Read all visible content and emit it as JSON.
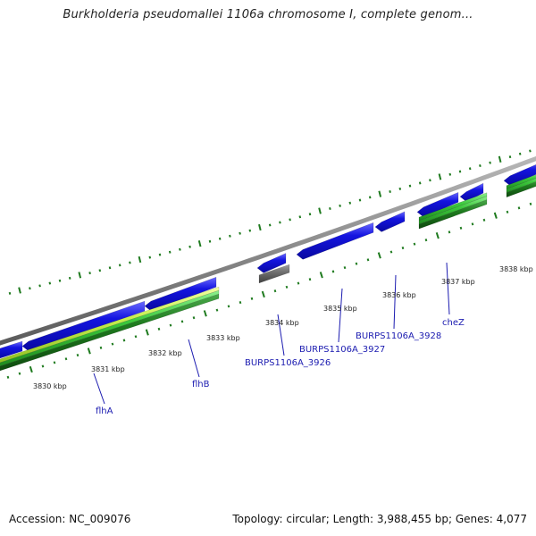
{
  "title": "Burkholderia pseudomallei 1106a chromosome I, complete genom...",
  "footer": {
    "accession": "Accession: NC_009076",
    "topology": "Topology: circular; Length: 3,988,455 bp; Genes: 4,077"
  },
  "colors": {
    "backbone": "#8a8a8a",
    "cds_blue": "#1414e0",
    "cds_gray": "#707070",
    "track_green_dark": "#1e7a1e",
    "track_green_mid": "#3cc83c",
    "track_green_light": "#c8f050",
    "ticks": "#1e7a1e",
    "gene_label": "#1b1bb0"
  },
  "ticks": [
    {
      "label": "3830 kbp",
      "kbp": 3830
    },
    {
      "label": "3831 kbp",
      "kbp": 3831
    },
    {
      "label": "3832 kbp",
      "kbp": 3832
    },
    {
      "label": "3833 kbp",
      "kbp": 3833
    },
    {
      "label": "3834 kbp",
      "kbp": 3834
    },
    {
      "label": "3835 kbp",
      "kbp": 3835
    },
    {
      "label": "3836 kbp",
      "kbp": 3836
    },
    {
      "label": "3837 kbp",
      "kbp": 3837
    },
    {
      "label": "3838 kbp",
      "kbp": 3838
    }
  ],
  "genes": [
    {
      "name": "flhA"
    },
    {
      "name": "flhB"
    },
    {
      "name": "BURPS1106A_3926"
    },
    {
      "name": "BURPS1106A_3927"
    },
    {
      "name": "BURPS1106A_3928"
    },
    {
      "name": "cheZ"
    }
  ]
}
